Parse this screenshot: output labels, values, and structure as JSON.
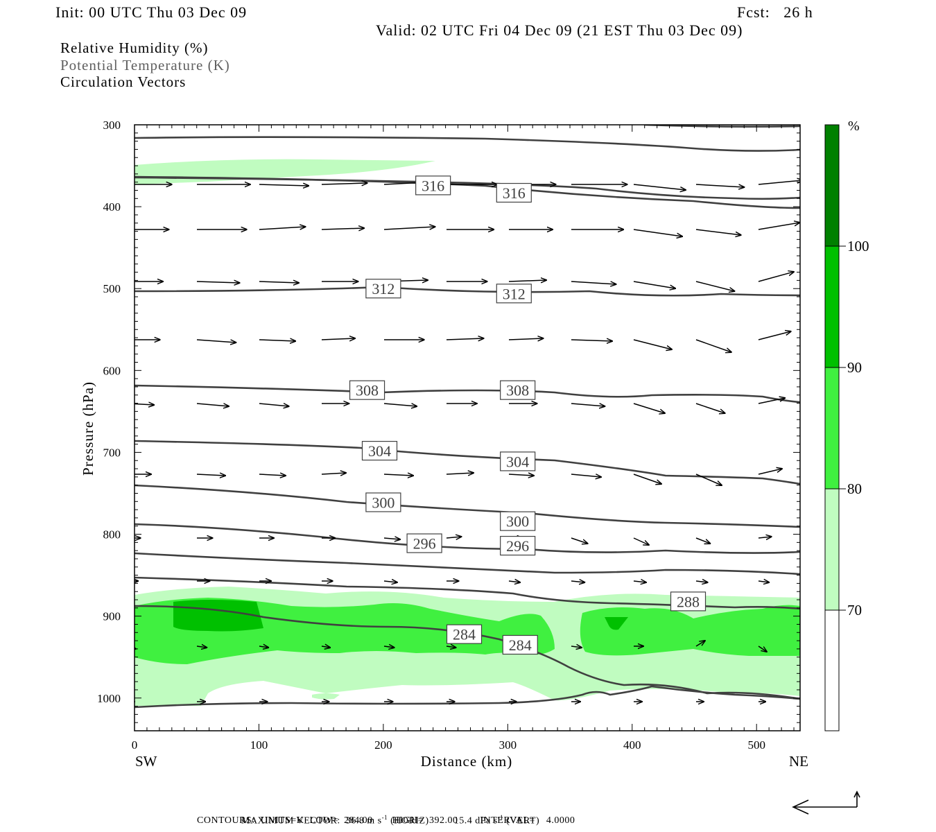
{
  "header": {
    "init": "Init: 00 UTC Thu 03 Dec 09",
    "fcst": "Fcst:   26 h",
    "valid": "Valid: 02 UTC Fri 04 Dec 09 (21 EST Thu 03 Dec 09)"
  },
  "legend_lines": {
    "rh": "Relative Humidity (%)",
    "theta": "Potential Temperature (K)",
    "vectors": "Circulation Vectors"
  },
  "footer": {
    "max_vector_label": "MAXIMUM VECTOR:",
    "max_horiz": "36.8 m s",
    "horiz_exp": "-1",
    "horiz_unit": "(HORIZ)",
    "max_vert": "15.4 dPa s",
    "vert_exp": "-1",
    "vert_unit": "(VERT)",
    "contours": "CONTOURS:  UNITS=K  LOW=  284.00       HIGH=  392.00        INTERVAL=    4.0000"
  },
  "colors": {
    "rh70": "#c0fcc0",
    "rh80": "#40f040",
    "rh90": "#00c000",
    "rh100": "#008000",
    "contour": "#404040"
  },
  "chart_data": {
    "type": "heatmap",
    "title": "",
    "xlabel": "Distance (km)",
    "ylabel": "Pressure (hPa)",
    "xlim": [
      0,
      535
    ],
    "ylim": [
      1040,
      300
    ],
    "x_ticks": [
      0,
      100,
      200,
      300,
      400,
      500
    ],
    "y_ticks": [
      300,
      400,
      500,
      600,
      700,
      800,
      900,
      1000
    ],
    "x_end_labels": {
      "left": "SW",
      "right": "NE"
    },
    "colorbar": {
      "unit": "%",
      "levels": [
        70,
        80,
        90,
        100
      ]
    },
    "theta_contour_labels": [
      {
        "value": "316",
        "x": 240,
        "p": 374
      },
      {
        "value": "316",
        "x": 305,
        "p": 383
      },
      {
        "value": "312",
        "x": 200,
        "p": 500
      },
      {
        "value": "312",
        "x": 305,
        "p": 506
      },
      {
        "value": "308",
        "x": 187,
        "p": 624
      },
      {
        "value": "308",
        "x": 308,
        "p": 624
      },
      {
        "value": "304",
        "x": 197,
        "p": 698
      },
      {
        "value": "304",
        "x": 308,
        "p": 711
      },
      {
        "value": "300",
        "x": 200,
        "p": 761
      },
      {
        "value": "300",
        "x": 308,
        "p": 784
      },
      {
        "value": "296",
        "x": 233,
        "p": 811
      },
      {
        "value": "296",
        "x": 308,
        "p": 814
      },
      {
        "value": "288",
        "x": 445,
        "p": 882
      },
      {
        "value": "284",
        "x": 265,
        "p": 922
      },
      {
        "value": "284",
        "x": 310,
        "p": 935
      }
    ]
  }
}
